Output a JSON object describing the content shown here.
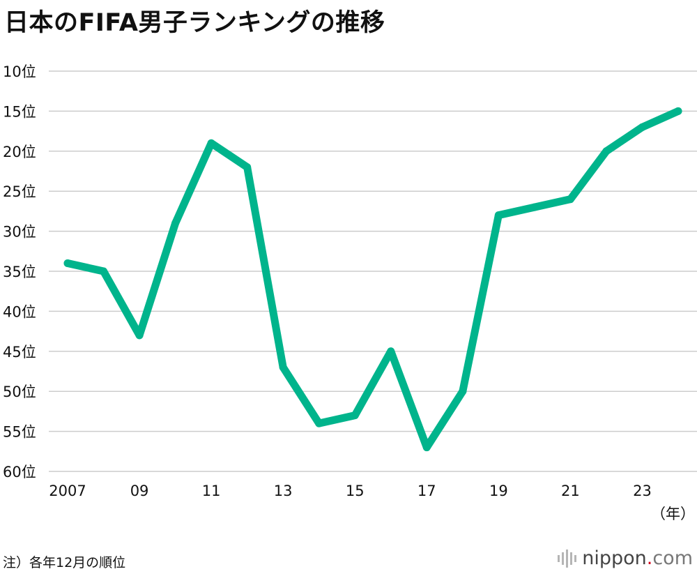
{
  "title": "日本のFIFA男子ランキングの推移",
  "note": "注）各年12月の順位",
  "brand": {
    "name": "nippon",
    "dot": ".",
    "tld": "com"
  },
  "colors": {
    "line": "#00b48c",
    "grid": "#cccccc"
  },
  "chart_data": {
    "type": "line",
    "title": "日本のFIFA男子ランキングの推移",
    "x_unit": "（年）",
    "x": [
      2007,
      2008,
      2009,
      2010,
      2011,
      2012,
      2013,
      2014,
      2015,
      2016,
      2017,
      2018,
      2019,
      2020,
      2021,
      2022,
      2023,
      2024
    ],
    "series": [
      {
        "values": [
          34,
          35,
          43,
          29,
          19,
          22,
          47,
          54,
          53,
          45,
          57,
          50,
          28,
          27,
          26,
          20,
          17,
          15
        ]
      }
    ],
    "y_inverted": true,
    "ylim": [
      10,
      60
    ],
    "y_ticks": [
      {
        "value": 10,
        "label": "10位"
      },
      {
        "value": 15,
        "label": "15位"
      },
      {
        "value": 20,
        "label": "20位"
      },
      {
        "value": 25,
        "label": "25位"
      },
      {
        "value": 30,
        "label": "30位"
      },
      {
        "value": 35,
        "label": "35位"
      },
      {
        "value": 40,
        "label": "40位"
      },
      {
        "value": 45,
        "label": "45位"
      },
      {
        "value": 50,
        "label": "50位"
      },
      {
        "value": 55,
        "label": "55位"
      },
      {
        "value": 60,
        "label": "60位"
      }
    ],
    "x_ticks": [
      {
        "value": 2007,
        "label": "2007"
      },
      {
        "value": 2009,
        "label": "09"
      },
      {
        "value": 2011,
        "label": "11"
      },
      {
        "value": 2013,
        "label": "13"
      },
      {
        "value": 2015,
        "label": "15"
      },
      {
        "value": 2017,
        "label": "17"
      },
      {
        "value": 2019,
        "label": "19"
      },
      {
        "value": 2021,
        "label": "21"
      },
      {
        "value": 2023,
        "label": "23"
      }
    ],
    "grid": true
  }
}
